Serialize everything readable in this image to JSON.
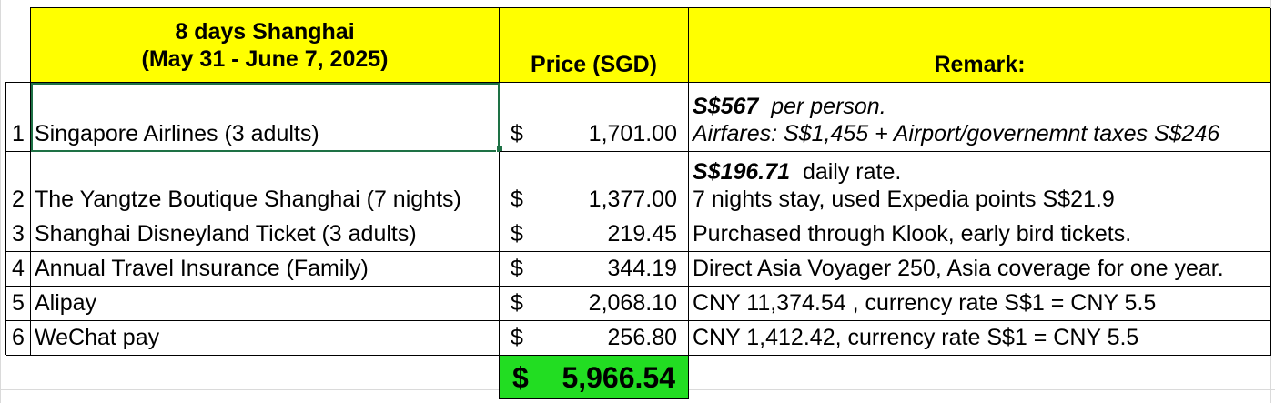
{
  "header": {
    "title_line1": "8 days Shanghai",
    "title_line2": "(May 31 - June 7, 2025)",
    "price": "Price (SGD)",
    "remark": "Remark:"
  },
  "rows": [
    {
      "no": "1",
      "item": "Singapore Airlines (3 adults)",
      "currency": "$",
      "price": "1,701.00",
      "remark_bold": "S$567",
      "remark_line1_rest": "  per person.",
      "remark_line2": "Airfares: S$1,455 + Airport/governemnt taxes S$246"
    },
    {
      "no": "2",
      "item": "The Yangtze Boutique Shanghai (7 nights)",
      "currency": "$",
      "price": "1,377.00",
      "remark_bold": "S$196.71",
      "remark_line1_rest": "  daily rate.",
      "remark_line2": "7 nights stay, used Expedia points S$21.9"
    },
    {
      "no": "3",
      "item": "Shanghai Disneyland Ticket (3 adults)",
      "currency": "$",
      "price": "219.45",
      "remark": "Purchased through Klook, early bird tickets."
    },
    {
      "no": "4",
      "item": "Annual Travel Insurance (Family)",
      "currency": "$",
      "price": "344.19",
      "remark": "Direct Asia Voyager 250, Asia coverage for one year."
    },
    {
      "no": "5",
      "item": "Alipay",
      "currency": "$",
      "price": "2,068.10",
      "remark": "CNY 11,374.54 , currency rate S$1 = CNY 5.5"
    },
    {
      "no": "6",
      "item": "WeChat pay",
      "currency": "$",
      "price": "256.80",
      "remark": "CNY 1,412.42, currency rate S$1 = CNY 5.5"
    }
  ],
  "total": {
    "currency": "$",
    "value": "5,966.54"
  },
  "colors": {
    "header_fill": "#ffff00",
    "total_fill": "#22dd22",
    "selection": "#1e7145"
  }
}
